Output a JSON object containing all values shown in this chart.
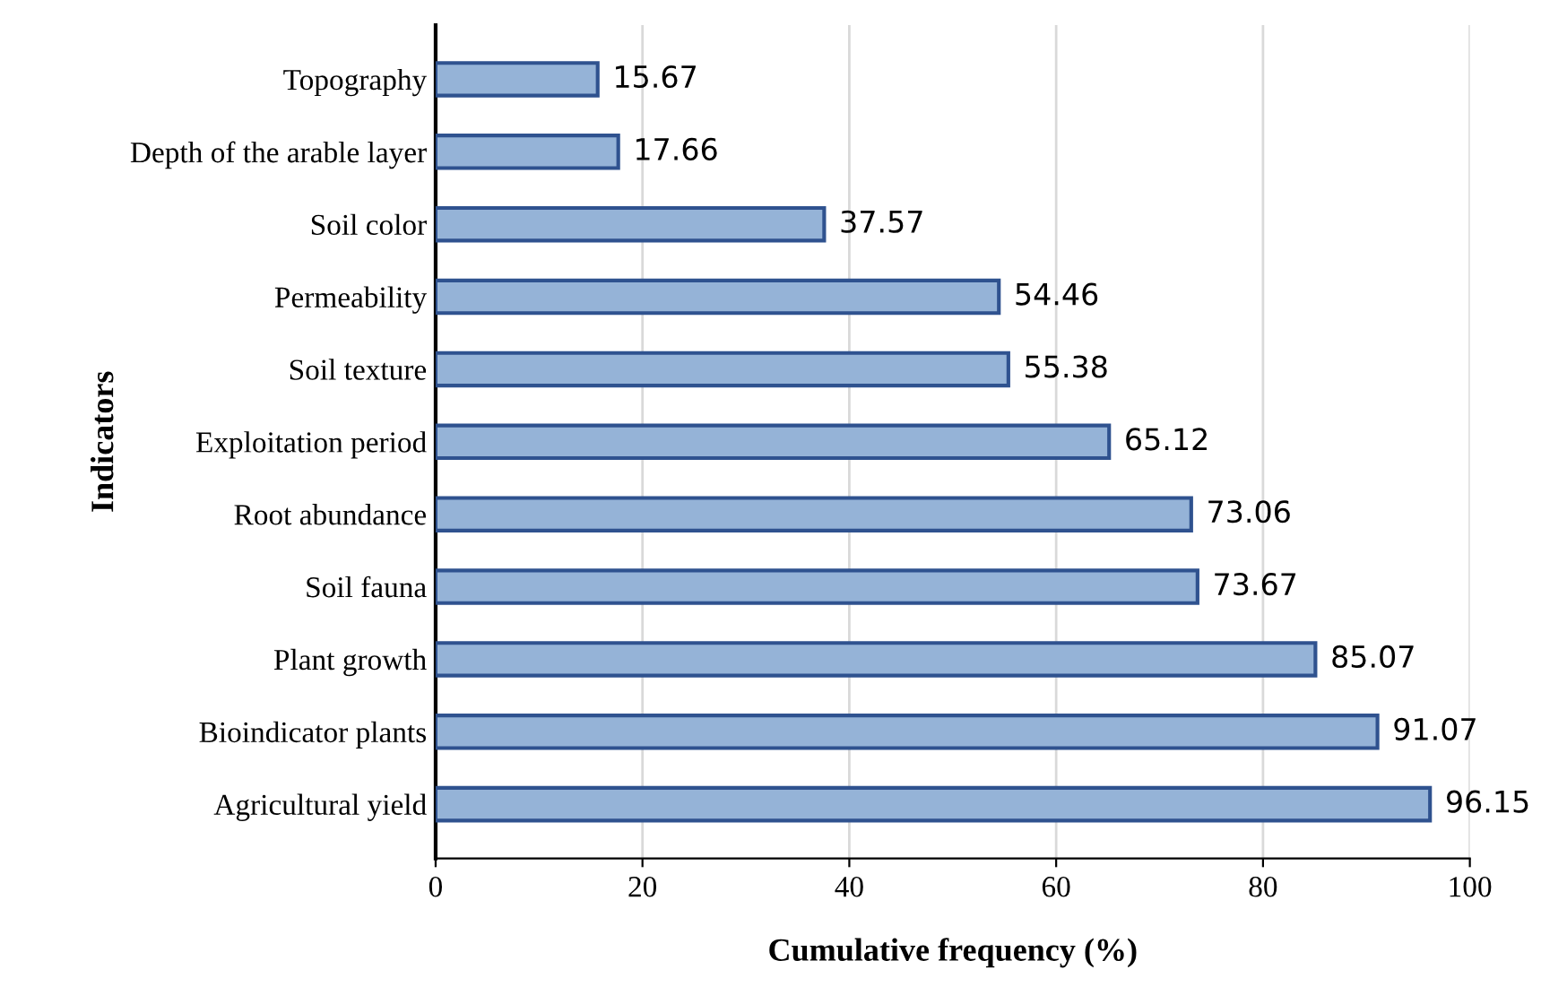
{
  "chart_data": {
    "type": "bar",
    "orientation": "horizontal",
    "xlabel": "Cumulative frequency (%)",
    "ylabel": "Indicators",
    "categories": [
      "Topography",
      "Depth of the arable layer",
      "Soil color",
      "Permeability",
      "Soil texture",
      "Exploitation period",
      "Root abundance",
      "Soil fauna",
      "Plant growth",
      "Bioindicator plants",
      "Agricultural yield"
    ],
    "values": [
      15.67,
      17.66,
      37.57,
      54.46,
      55.38,
      65.12,
      73.06,
      73.67,
      85.07,
      91.07,
      96.15
    ],
    "color": "#95b3d7",
    "xlim": [
      0,
      100
    ],
    "xticks": [
      0,
      20,
      40,
      60,
      80,
      100
    ],
    "grid": "x",
    "data_labels": true
  }
}
